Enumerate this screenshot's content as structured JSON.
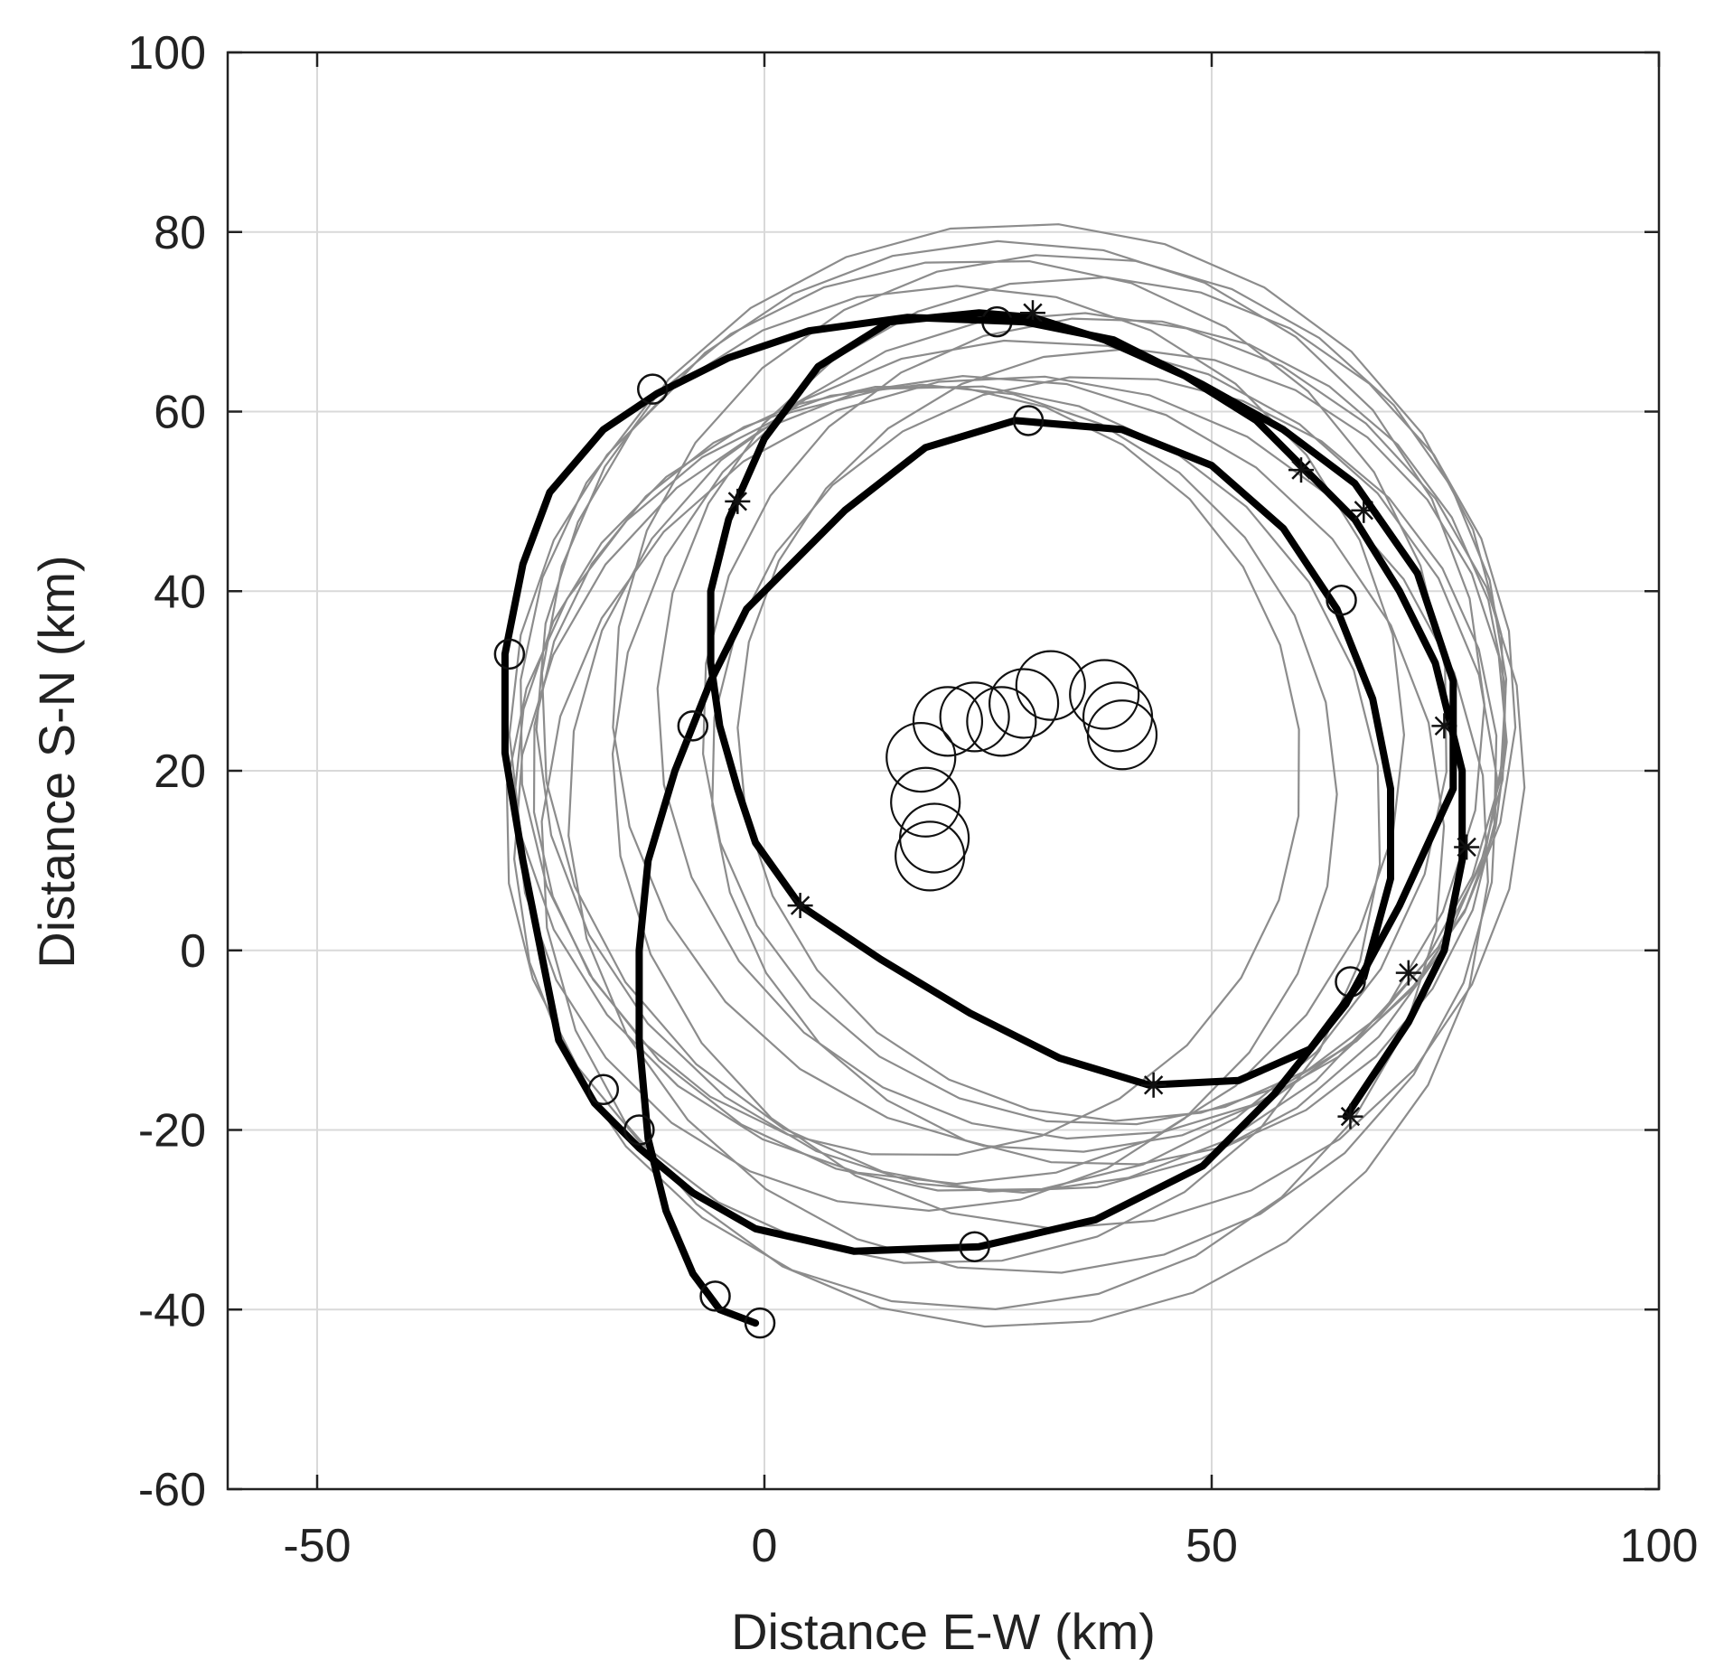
{
  "chart_data": {
    "type": "line",
    "title": "",
    "xlabel": "Distance E-W (km)",
    "ylabel": "Distance S-N (km)",
    "xlim": [
      -60,
      100
    ],
    "ylim": [
      -60,
      100
    ],
    "xticks": [
      -50,
      0,
      50,
      100
    ],
    "yticks": [
      100,
      80,
      60,
      40,
      20,
      0,
      -20,
      -40,
      -60
    ],
    "xtick_labels": [
      "-50",
      "0",
      "50",
      "100"
    ],
    "ytick_labels": [
      "100",
      "80",
      "60",
      "40",
      "20",
      "0",
      "-20",
      "-40",
      "-60"
    ],
    "grid": true,
    "legend": "none",
    "colors": {
      "track": "#000000",
      "rings": "#8c8c8c",
      "grid": "#d9d9d9",
      "axes": "#222222"
    },
    "tracks": [
      {
        "points": [
          [
            -1,
            -41.5
          ],
          [
            -5,
            -40
          ],
          [
            -8,
            -36
          ],
          [
            -11,
            -29
          ],
          [
            -13,
            -21
          ],
          [
            -14,
            -10
          ],
          [
            -14,
            0
          ],
          [
            -13,
            10
          ],
          [
            -10,
            20
          ],
          [
            -6,
            30
          ],
          [
            -2,
            38
          ],
          [
            3,
            43
          ],
          [
            9,
            49
          ],
          [
            18,
            56
          ],
          [
            28,
            59
          ],
          [
            40,
            58
          ],
          [
            50,
            54
          ],
          [
            58,
            47
          ],
          [
            64,
            38
          ],
          [
            68,
            28
          ],
          [
            70,
            18
          ],
          [
            70,
            8
          ],
          [
            67,
            -3
          ],
          [
            61,
            -11
          ],
          [
            53,
            -14.5
          ],
          [
            43,
            -15
          ],
          [
            33,
            -12
          ],
          [
            23,
            -7
          ],
          [
            13,
            -1
          ],
          [
            4,
            5
          ],
          [
            -1,
            12
          ],
          [
            -3,
            18
          ],
          [
            -5,
            25
          ],
          [
            -6,
            32
          ],
          [
            -6,
            40
          ],
          [
            -4,
            48
          ],
          [
            0,
            57
          ],
          [
            6,
            65
          ],
          [
            14,
            70
          ],
          [
            24,
            71
          ],
          [
            30,
            70.5
          ],
          [
            38,
            68
          ],
          [
            47,
            64
          ],
          [
            55,
            59
          ],
          [
            61,
            53
          ],
          [
            66,
            48
          ],
          [
            71,
            40
          ],
          [
            75,
            32
          ],
          [
            78,
            20
          ],
          [
            78,
            10
          ],
          [
            76,
            0
          ],
          [
            72,
            -8
          ],
          [
            68,
            -14
          ],
          [
            65,
            -18.5
          ]
        ],
        "markers": [
          {
            "type": "circle",
            "x": -0.5,
            "y": -41.5
          },
          {
            "type": "circle",
            "x": -5.5,
            "y": -38.5
          },
          {
            "type": "circle",
            "x": 29.5,
            "y": 59
          },
          {
            "type": "circle",
            "x": 64.5,
            "y": 39
          },
          {
            "type": "circle",
            "x": 65.5,
            "y": -3.5
          },
          {
            "type": "star",
            "x": 43.5,
            "y": -15
          },
          {
            "type": "star",
            "x": 4,
            "y": 5
          },
          {
            "type": "circle",
            "x": -8,
            "y": 25
          },
          {
            "type": "star",
            "x": -3,
            "y": 50
          },
          {
            "type": "circle",
            "x": 26,
            "y": 70
          },
          {
            "type": "star",
            "x": 30,
            "y": 71
          },
          {
            "type": "star",
            "x": 60,
            "y": 53.5
          },
          {
            "type": "star",
            "x": 67,
            "y": 49
          },
          {
            "type": "star",
            "x": 76,
            "y": 25
          },
          {
            "type": "star",
            "x": 78.5,
            "y": 11.5
          },
          {
            "type": "star",
            "x": 72,
            "y": -2.5
          },
          {
            "type": "star",
            "x": 65.5,
            "y": -18.5
          }
        ]
      },
      {
        "points": [
          [
            -12,
            62
          ],
          [
            -18,
            58
          ],
          [
            -24,
            51
          ],
          [
            -27,
            43
          ],
          [
            -29,
            33
          ],
          [
            -29,
            22
          ],
          [
            -27,
            10
          ],
          [
            -25,
            0
          ],
          [
            -23,
            -10
          ],
          [
            -19,
            -17
          ],
          [
            -14,
            -22
          ],
          [
            -8,
            -27
          ],
          [
            -1,
            -31
          ],
          [
            10,
            -33.5
          ],
          [
            24,
            -33
          ],
          [
            37,
            -30
          ],
          [
            49,
            -24
          ],
          [
            57,
            -16
          ],
          [
            65,
            -6
          ],
          [
            71,
            5
          ],
          [
            77,
            18
          ],
          [
            77,
            30
          ],
          [
            73,
            42
          ],
          [
            66,
            52
          ],
          [
            58,
            58
          ],
          [
            49,
            63
          ],
          [
            39,
            68
          ],
          [
            29,
            70
          ],
          [
            16,
            70.5
          ],
          [
            5,
            69
          ],
          [
            -4,
            66
          ],
          [
            -12,
            62
          ]
        ],
        "markers": [
          {
            "type": "circle",
            "x": -12.5,
            "y": 62.5
          },
          {
            "type": "circle",
            "x": -28.5,
            "y": 33
          },
          {
            "type": "circle",
            "x": -18,
            "y": -15.5
          },
          {
            "type": "circle",
            "x": -14,
            "y": -20
          },
          {
            "type": "circle",
            "x": 23.5,
            "y": -33
          }
        ]
      }
    ],
    "rings": [
      {
        "cx": 21.5,
        "cy": 24,
        "r": 50
      },
      {
        "cx": 24.5,
        "cy": 25,
        "r": 52
      },
      {
        "cx": 27.5,
        "cy": 26,
        "r": 53
      },
      {
        "cx": 29,
        "cy": 27,
        "r": 54
      },
      {
        "cx": 33,
        "cy": 27.5,
        "r": 50
      },
      {
        "cx": 36,
        "cy": 27,
        "r": 48
      },
      {
        "cx": 38,
        "cy": 25.5,
        "r": 45
      },
      {
        "cx": 40,
        "cy": 24,
        "r": 43
      },
      {
        "cx": 17,
        "cy": 20,
        "r": 43
      },
      {
        "cx": 18,
        "cy": 17,
        "r": 46
      },
      {
        "cx": 20,
        "cy": 14,
        "r": 49
      },
      {
        "cx": 24,
        "cy": 12,
        "r": 52
      },
      {
        "cx": 28,
        "cy": 11,
        "r": 53
      },
      {
        "cx": 30,
        "cy": 16,
        "r": 52
      },
      {
        "cx": 34,
        "cy": 20,
        "r": 51
      },
      {
        "cx": 38,
        "cy": 20,
        "r": 44
      }
    ],
    "centers": [
      {
        "x": 40,
        "y": 24
      },
      {
        "x": 39.5,
        "y": 26
      },
      {
        "x": 38,
        "y": 28.5
      },
      {
        "x": 32,
        "y": 29.5
      },
      {
        "x": 29,
        "y": 27.5
      },
      {
        "x": 26.5,
        "y": 25.5
      },
      {
        "x": 23.5,
        "y": 26
      },
      {
        "x": 20.5,
        "y": 25.5
      },
      {
        "x": 17.5,
        "y": 21.5
      },
      {
        "x": 18,
        "y": 16.5
      },
      {
        "x": 19,
        "y": 12.5
      },
      {
        "x": 18.5,
        "y": 10.5
      }
    ]
  }
}
